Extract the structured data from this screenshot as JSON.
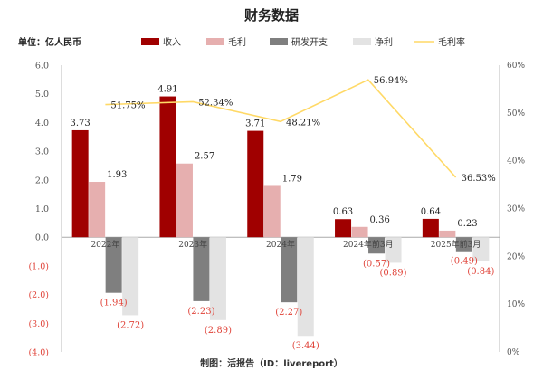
{
  "title": "财务数据",
  "unit_label": "单位：亿人民币",
  "footer": "制图：活报告（ID：livereport）",
  "colors": {
    "revenue": "#a00000",
    "gross": "#e6afaf",
    "rnd": "#7f7f7f",
    "net": "#e3e3e3",
    "margin": "#ffd966",
    "negative_text": "#e0443a"
  },
  "chart_data": {
    "type": "bar",
    "categories": [
      "2022年",
      "2023年",
      "2024年",
      "2024年前3月",
      "2025年前3月"
    ],
    "series": [
      {
        "name": "收入",
        "values": [
          3.73,
          4.91,
          3.71,
          0.63,
          0.64
        ],
        "labels": [
          "3.73",
          "4.91",
          "3.71",
          "0.63",
          "0.64"
        ]
      },
      {
        "name": "毛利",
        "values": [
          1.93,
          2.57,
          1.79,
          0.36,
          0.23
        ],
        "labels": [
          "1.93",
          "2.57",
          "1.79",
          "0.36",
          "0.23"
        ]
      },
      {
        "name": "研发开支",
        "values": [
          -1.94,
          -2.23,
          -2.27,
          -0.57,
          -0.49
        ],
        "labels": [
          "(1.94)",
          "(2.23)",
          "(2.27)",
          "(0.57)",
          "(0.49)"
        ]
      },
      {
        "name": "净利",
        "values": [
          -2.72,
          -2.89,
          -3.44,
          -0.89,
          -0.84
        ],
        "labels": [
          "(2.72)",
          "(2.89)",
          "(3.44)",
          "(0.89)",
          "(0.84)"
        ]
      }
    ],
    "line_series": {
      "name": "毛利率",
      "values": [
        51.75,
        52.34,
        48.21,
        56.94,
        36.53
      ],
      "labels": [
        "51.75%",
        "52.34%",
        "48.21%",
        "56.94%",
        "36.53%"
      ]
    },
    "ylim": [
      -4.0,
      6.0
    ],
    "y2lim": [
      0,
      60
    ],
    "y_ticks": [
      "6.0",
      "5.0",
      "4.0",
      "3.0",
      "2.0",
      "1.0",
      "0.0",
      "(1.0)",
      "(2.0)",
      "(3.0)",
      "(4.0)"
    ],
    "y2_ticks": [
      "60%",
      "50%",
      "40%",
      "30%",
      "20%",
      "10%",
      "0%"
    ],
    "legend_position": "top",
    "grid": false
  }
}
